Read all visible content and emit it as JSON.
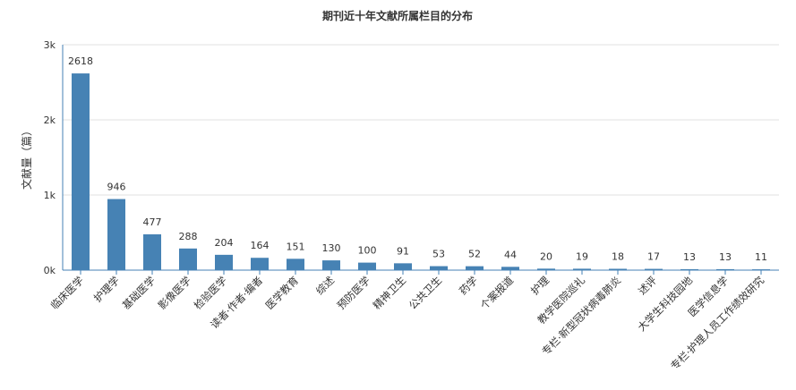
{
  "chart_data": {
    "type": "bar",
    "title": "期刊近十年文献所属栏目的分布",
    "xlabel": "",
    "ylabel": "文献量（篇）",
    "ylim": [
      0,
      3000
    ],
    "yticks": [
      0,
      1000,
      2000,
      3000
    ],
    "ytick_labels": [
      "0k",
      "1k",
      "2k",
      "3k"
    ],
    "grid": true,
    "categories": [
      "临床医学",
      "护理学",
      "基础医学",
      "影像医学",
      "检验医学",
      "读者·作者·编者",
      "医学教育",
      "综述",
      "预防医学",
      "精神卫生",
      "公共卫生",
      "药学",
      "个案报道",
      "护理",
      "教学医院巡礼",
      "专栏·新型冠状病毒肺炎",
      "述评",
      "大学生科技园地",
      "医学信息学",
      "专栏·护理人员工作绩效研究"
    ],
    "values": [
      2618,
      946,
      477,
      288,
      204,
      164,
      151,
      130,
      100,
      91,
      53,
      52,
      44,
      20,
      19,
      18,
      17,
      13,
      13,
      11
    ],
    "colors": {
      "bar": "#4682b4",
      "axis": "#4682b4",
      "grid": "#e0e0e0"
    }
  }
}
